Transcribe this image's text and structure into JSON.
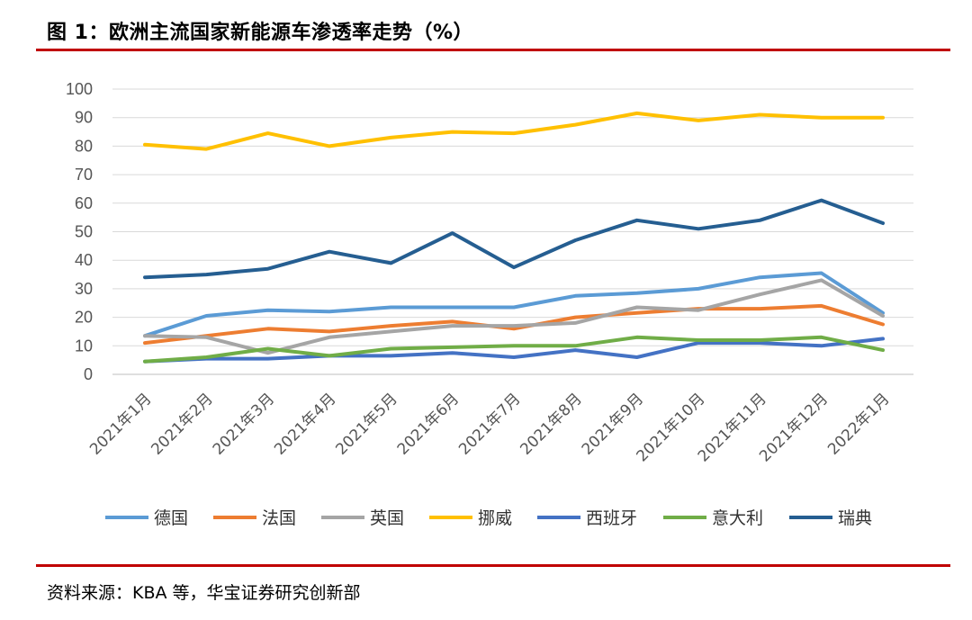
{
  "figure": {
    "title": "图 1：欧洲主流国家新能源车渗透率走势（%）",
    "source": "资料来源：KBA 等，华宝证券研究创新部"
  },
  "chart_data": {
    "type": "line",
    "title": "",
    "xlabel": "",
    "ylabel": "",
    "ylim": [
      0,
      100
    ],
    "yticks": [
      0,
      10,
      20,
      30,
      40,
      50,
      60,
      70,
      80,
      90,
      100
    ],
    "grid": true,
    "legend_position": "bottom",
    "categories": [
      "2021年1月",
      "2021年2月",
      "2021年3月",
      "2021年4月",
      "2021年5月",
      "2021年6月",
      "2021年7月",
      "2021年8月",
      "2021年9月",
      "2021年10月",
      "2021年11月",
      "2021年12月",
      "2022年1月"
    ],
    "series": [
      {
        "name": "德国",
        "color": "#5b9bd5",
        "values": [
          13.5,
          20.5,
          22.5,
          22,
          23.5,
          23.5,
          23.5,
          27.5,
          28.5,
          30,
          34,
          35.5,
          21.5
        ]
      },
      {
        "name": "法国",
        "color": "#ed7d31",
        "values": [
          11,
          13.5,
          16,
          15,
          17,
          18.5,
          16,
          20,
          21.5,
          23,
          23,
          24,
          17.5
        ]
      },
      {
        "name": "英国",
        "color": "#a5a5a5",
        "values": [
          13.5,
          13,
          7.5,
          13,
          15,
          17,
          17,
          18,
          23.5,
          22.5,
          28,
          33,
          20.5
        ]
      },
      {
        "name": "挪威",
        "color": "#ffc000",
        "values": [
          80.5,
          79,
          84.5,
          80,
          83,
          85,
          84.5,
          87.5,
          91.5,
          89,
          91,
          90,
          90
        ]
      },
      {
        "name": "西班牙",
        "color": "#4472c4",
        "values": [
          4.5,
          5.5,
          5.5,
          6.5,
          6.5,
          7.5,
          6,
          8.5,
          6,
          11,
          11,
          10,
          12.5
        ]
      },
      {
        "name": "意大利",
        "color": "#70ad47",
        "values": [
          4.5,
          6,
          9,
          6.5,
          9,
          9.5,
          10,
          10,
          13,
          12,
          12,
          13,
          8.5
        ]
      },
      {
        "name": "瑞典",
        "color": "#255e91",
        "values": [
          34,
          35,
          37,
          43,
          39,
          49.5,
          37.5,
          47,
          54,
          51,
          54,
          61,
          53
        ]
      }
    ]
  }
}
